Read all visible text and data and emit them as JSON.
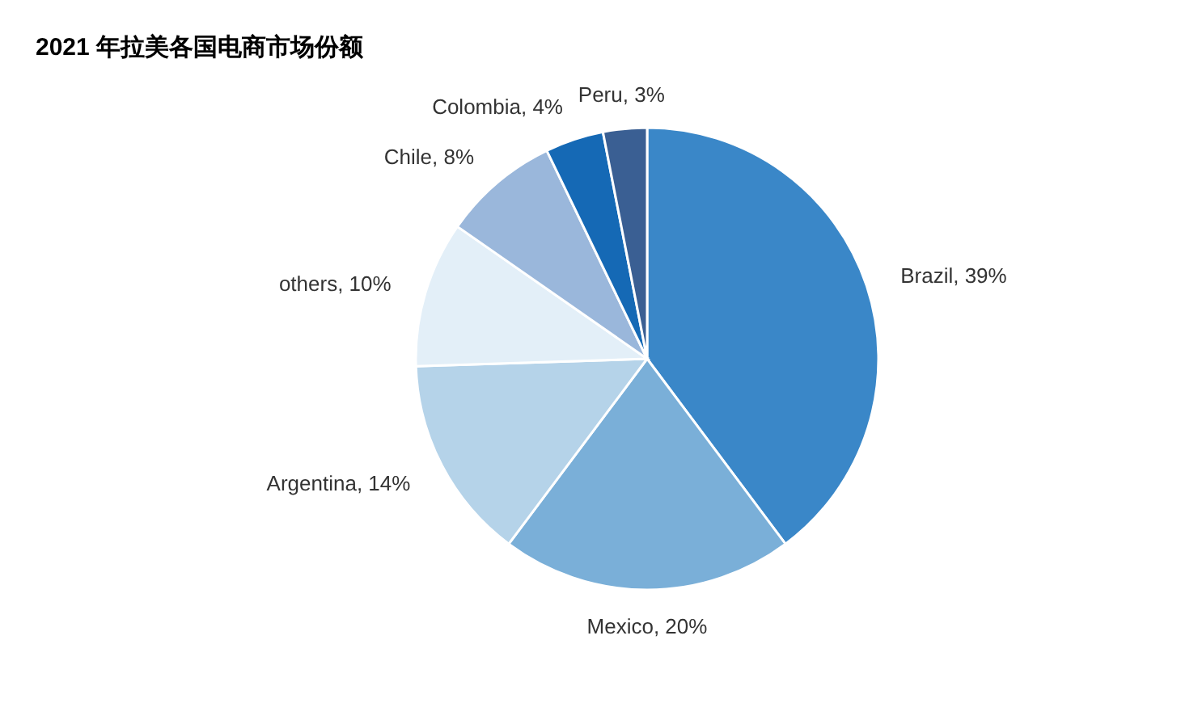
{
  "chart_data": {
    "type": "pie",
    "title": "2021 年拉美各国电商市场份额",
    "categories": [
      "Brazil",
      "Mexico",
      "Argentina",
      "others",
      "Chile",
      "Colombia",
      "Peru"
    ],
    "values": [
      39,
      20,
      14,
      10,
      8,
      4,
      3
    ],
    "value_labels": [
      "39%",
      "20%",
      "14%",
      "10%",
      "8%",
      "4%",
      "3%"
    ],
    "colors": [
      "#3a87c8",
      "#7aafd8",
      "#b5d3e9",
      "#e3eff8",
      "#9ab7db",
      "#1569b5",
      "#3a5f93"
    ]
  }
}
